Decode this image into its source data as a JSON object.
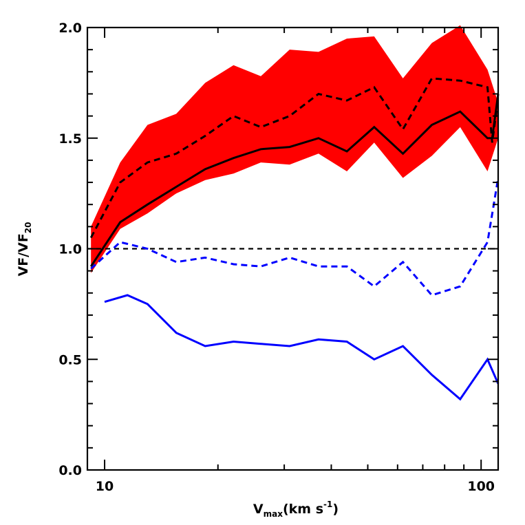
{
  "chart_data": {
    "type": "line",
    "title": "",
    "xlabel": {
      "main": "V",
      "sub": "max",
      "rest": "(km s",
      "sup": "-1",
      "close": ")"
    },
    "ylabel": {
      "main": "VF/VF",
      "sub": "20"
    },
    "xscale": "log",
    "xlim": [
      9.0,
      111.0
    ],
    "ylim": [
      0.0,
      2.0
    ],
    "xticks": [
      {
        "value": 10,
        "label": "10"
      },
      {
        "value": 100,
        "label": "100"
      }
    ],
    "yticks": [
      {
        "value": 0.0,
        "label": "0.0"
      },
      {
        "value": 0.5,
        "label": "0.5"
      },
      {
        "value": 1.0,
        "label": "1.0"
      },
      {
        "value": 1.5,
        "label": "1.5"
      },
      {
        "value": 2.0,
        "label": "2.0"
      }
    ],
    "reference_line": {
      "y": 1.0,
      "color": "#000000",
      "style": "dashed"
    },
    "band": {
      "color": "#ff0000",
      "x": [
        9.2,
        11.0,
        13.0,
        15.5,
        18.5,
        22.0,
        26.0,
        31.0,
        37.0,
        44.0,
        52.0,
        62.0,
        74.0,
        88.0,
        104.0,
        111.0
      ],
      "upper": [
        1.1,
        1.39,
        1.56,
        1.61,
        1.75,
        1.83,
        1.78,
        1.9,
        1.89,
        1.95,
        1.96,
        1.77,
        1.93,
        2.01,
        1.81,
        1.66
      ],
      "lower": [
        0.89,
        1.09,
        1.16,
        1.25,
        1.31,
        1.34,
        1.39,
        1.38,
        1.43,
        1.35,
        1.48,
        1.32,
        1.42,
        1.55,
        1.35,
        1.5
      ]
    },
    "series": [
      {
        "color": "#000000",
        "style": "solid",
        "x": [
          9.2,
          11.0,
          13.0,
          15.5,
          18.5,
          22.0,
          26.0,
          31.0,
          37.0,
          44.0,
          52.0,
          62.0,
          74.0,
          88.0,
          104.0,
          107.0,
          111.0
        ],
        "y": [
          0.92,
          1.12,
          1.2,
          1.28,
          1.36,
          1.41,
          1.45,
          1.46,
          1.5,
          1.44,
          1.55,
          1.43,
          1.56,
          1.62,
          1.5,
          1.5,
          1.7
        ]
      },
      {
        "color": "#000000",
        "style": "dashed",
        "x": [
          9.2,
          11.0,
          13.0,
          15.5,
          18.5,
          22.0,
          26.0,
          31.0,
          37.0,
          44.0,
          52.0,
          62.0,
          74.0,
          88.0,
          104.0,
          107.0,
          111.0
        ],
        "y": [
          1.05,
          1.3,
          1.39,
          1.43,
          1.51,
          1.6,
          1.55,
          1.6,
          1.7,
          1.67,
          1.73,
          1.54,
          1.77,
          1.76,
          1.73,
          1.48,
          1.68
        ]
      },
      {
        "color": "#0000ff",
        "style": "dashed",
        "x": [
          9.2,
          11.0,
          13.0,
          15.5,
          18.5,
          22.0,
          26.0,
          31.0,
          37.0,
          44.0,
          52.0,
          62.0,
          74.0,
          88.0,
          104.0,
          111.0
        ],
        "y": [
          0.91,
          1.03,
          1.0,
          0.94,
          0.96,
          0.93,
          0.92,
          0.96,
          0.92,
          0.92,
          0.83,
          0.94,
          0.79,
          0.83,
          1.03,
          1.32
        ]
      },
      {
        "color": "#0000ff",
        "style": "solid",
        "x": [
          10.0,
          11.5,
          13.0,
          15.5,
          18.5,
          22.0,
          26.0,
          31.0,
          37.0,
          44.0,
          52.0,
          62.0,
          74.0,
          88.0,
          104.0,
          111.0
        ],
        "y": [
          0.76,
          0.79,
          0.75,
          0.62,
          0.56,
          0.58,
          0.57,
          0.56,
          0.59,
          0.58,
          0.5,
          0.56,
          0.43,
          0.32,
          0.5,
          0.39
        ]
      }
    ]
  }
}
